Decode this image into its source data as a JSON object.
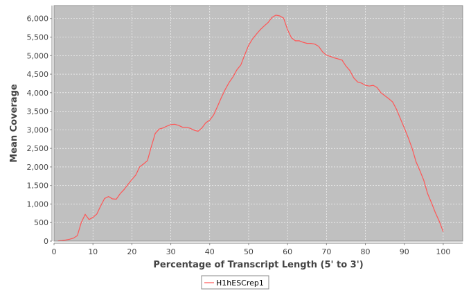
{
  "chart_data": {
    "type": "line",
    "title": "",
    "xlabel": "Percentage of Transcript Length (5' to 3')",
    "ylabel": "Mean Coverage",
    "xlim": [
      0,
      105
    ],
    "ylim": [
      0,
      6350
    ],
    "x_ticks": [
      0,
      10,
      20,
      30,
      40,
      50,
      60,
      70,
      80,
      90,
      100
    ],
    "y_ticks": [
      0,
      500,
      1000,
      1500,
      2000,
      2500,
      3000,
      3500,
      4000,
      4500,
      5000,
      5500,
      6000
    ],
    "x_tick_labels": [
      "0",
      "10",
      "20",
      "30",
      "40",
      "50",
      "60",
      "70",
      "80",
      "90",
      "100"
    ],
    "y_tick_labels": [
      "0",
      "500",
      "1,000",
      "1,500",
      "2,000",
      "2,500",
      "3,000",
      "3,500",
      "4,000",
      "4,500",
      "5,000",
      "5,500",
      "6,000"
    ],
    "grid": true,
    "legend_position": "bottom-center",
    "colors": {
      "plot_background": "#c0c0c0",
      "grid": "#ffffff",
      "series": "#ff5555",
      "frame": "#808080"
    },
    "series": [
      {
        "name": "H1hESCrep1",
        "x": [
          1,
          2,
          3,
          4,
          5,
          6,
          7,
          8,
          9,
          10,
          11,
          12,
          13,
          14,
          15,
          16,
          17,
          18,
          19,
          20,
          21,
          22,
          23,
          24,
          25,
          26,
          27,
          28,
          29,
          30,
          31,
          32,
          33,
          34,
          35,
          36,
          37,
          38,
          39,
          40,
          41,
          42,
          43,
          44,
          45,
          46,
          47,
          48,
          49,
          50,
          51,
          52,
          53,
          54,
          55,
          56,
          57,
          58,
          59,
          60,
          61,
          62,
          63,
          64,
          65,
          66,
          67,
          68,
          69,
          70,
          71,
          72,
          73,
          74,
          75,
          76,
          77,
          78,
          79,
          80,
          81,
          82,
          83,
          84,
          85,
          86,
          87,
          88,
          89,
          90,
          91,
          92,
          93,
          94,
          95,
          96,
          97,
          98,
          99,
          100
        ],
        "y": [
          5,
          15,
          30,
          50,
          80,
          150,
          500,
          720,
          580,
          640,
          730,
          950,
          1150,
          1200,
          1140,
          1130,
          1280,
          1390,
          1530,
          1660,
          1780,
          2000,
          2080,
          2170,
          2550,
          2900,
          3020,
          3050,
          3100,
          3140,
          3150,
          3120,
          3070,
          3070,
          3040,
          2990,
          2960,
          3050,
          3190,
          3260,
          3400,
          3630,
          3870,
          4090,
          4280,
          4430,
          4620,
          4750,
          5020,
          5280,
          5450,
          5580,
          5700,
          5800,
          5890,
          6030,
          6090,
          6070,
          6010,
          5700,
          5480,
          5400,
          5400,
          5360,
          5330,
          5330,
          5310,
          5250,
          5100,
          5010,
          4980,
          4940,
          4910,
          4880,
          4720,
          4600,
          4400,
          4290,
          4260,
          4200,
          4180,
          4200,
          4140,
          4000,
          3920,
          3840,
          3750,
          3550,
          3300,
          3050,
          2790,
          2500,
          2140,
          1900,
          1640,
          1280,
          1030,
          760,
          530,
          250
        ]
      }
    ]
  }
}
